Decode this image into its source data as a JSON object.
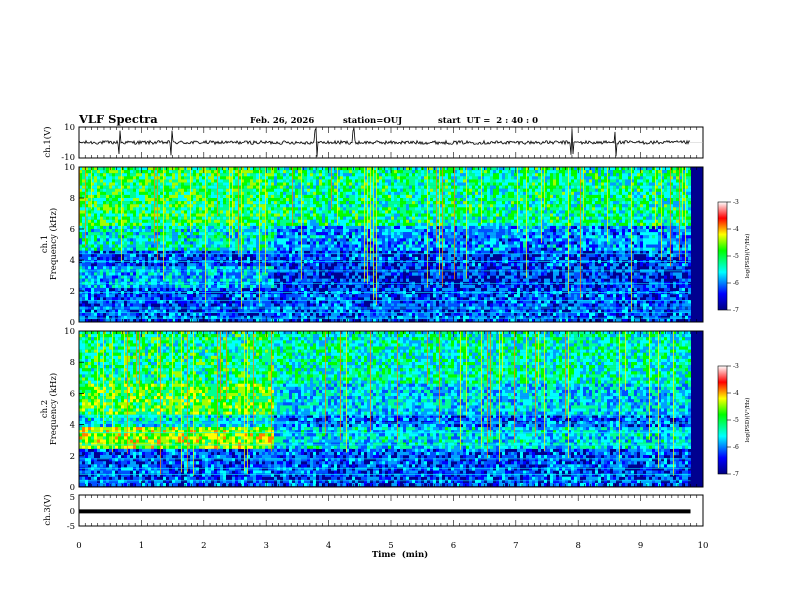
{
  "header": {
    "title": "VLF Spectra",
    "date": "Feb. 26, 2026",
    "station": "station=OUJ",
    "start": "start  UT =  2 : 40 : 0"
  },
  "chart_data": [
    {
      "type": "line",
      "name": "ch1-waveform",
      "ylabel": "ch.1(V)",
      "ylim": [
        -10,
        10
      ],
      "yticks": [
        "10",
        "-10"
      ],
      "baseline": 0,
      "spikes_at_min": [
        0.65,
        1.48,
        3.8,
        4.4,
        7.9,
        8.6
      ]
    },
    {
      "type": "heatmap",
      "name": "ch1-spectrogram",
      "ylabel": "ch.1\nFrequency  (kHz)",
      "ylim": [
        0,
        10
      ],
      "yticks": [
        "0",
        "2",
        "4",
        "6",
        "8",
        "10"
      ],
      "xlim": [
        0,
        10
      ],
      "data_end_min": 9.8,
      "transition_min": 3.1,
      "colorbar": {
        "label": "log(PSD)(V²/Hz)",
        "range": [
          -7,
          -3
        ],
        "ticks": [
          "-3",
          "-4",
          "-5",
          "-6",
          "-7"
        ]
      }
    },
    {
      "type": "heatmap",
      "name": "ch2-spectrogram",
      "ylabel": "ch.2\nFrequency  (kHz)",
      "ylim": [
        0,
        10
      ],
      "yticks": [
        "0",
        "2",
        "4",
        "6",
        "8",
        "10"
      ],
      "xlim": [
        0,
        10
      ],
      "data_end_min": 9.8,
      "transition_min": 3.1,
      "colorbar": {
        "label": "log(PSD)(V²/Hz)",
        "range": [
          -7,
          -3
        ],
        "ticks": [
          "-3",
          "-4",
          "-5",
          "-6",
          "-7"
        ]
      }
    },
    {
      "type": "line",
      "name": "ch3-waveform",
      "ylabel": "ch.3(V)",
      "ylim": [
        -5,
        5
      ],
      "yticks": [
        "5",
        "0",
        "-5"
      ],
      "constant_value": -0.3
    }
  ],
  "xaxis": {
    "label": "Time  (min)",
    "range": [
      0,
      10
    ],
    "ticks": [
      "0",
      "1",
      "2",
      "3",
      "4",
      "5",
      "6",
      "7",
      "8",
      "9",
      "10"
    ]
  },
  "colors": {
    "deep_blue": "#00008f",
    "blue": "#0000ff",
    "cyan": "#00ffff",
    "green": "#00ff00",
    "yellow": "#ffff00",
    "red": "#ff0000",
    "white": "#ffffff"
  }
}
